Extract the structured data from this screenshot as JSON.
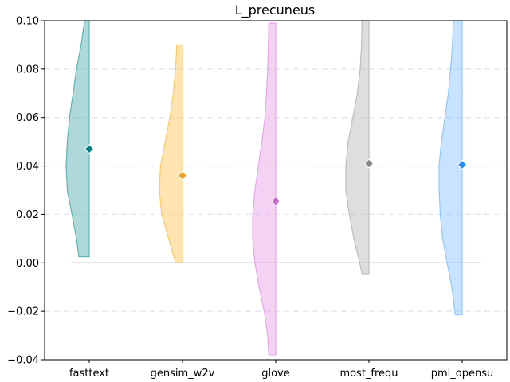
{
  "chart_data": {
    "type": "violin",
    "title": "L_precuneus",
    "xlabel": "",
    "ylabel": "",
    "ylim": [
      -0.04,
      0.1
    ],
    "yticks": [
      -0.04,
      -0.02,
      0.0,
      0.02,
      0.04,
      0.06,
      0.08,
      0.1
    ],
    "ytick_labels": [
      "−0.04",
      "−0.02",
      "0.00",
      "0.02",
      "0.04",
      "0.06",
      "0.08",
      "0.10"
    ],
    "categories": [
      "fasttext",
      "gensim_w2v",
      "glove",
      "most_frequ",
      "pmi_opensu"
    ],
    "grid": "horizontal dashed",
    "reference_line": 0.0,
    "series": [
      {
        "category": "fasttext",
        "color": "#5fb3b3",
        "marker_color": "#008080",
        "mean": 0.047,
        "min": 0.0025,
        "max": 0.1,
        "shape": [
          [
            0.0025,
            0.45
          ],
          [
            0.01,
            0.55
          ],
          [
            0.02,
            0.75
          ],
          [
            0.03,
            0.95
          ],
          [
            0.04,
            1.0
          ],
          [
            0.05,
            0.95
          ],
          [
            0.06,
            0.85
          ],
          [
            0.07,
            0.7
          ],
          [
            0.08,
            0.55
          ],
          [
            0.09,
            0.35
          ],
          [
            0.1,
            0.2
          ]
        ]
      },
      {
        "category": "gensim_w2v",
        "color": "#ffc966",
        "marker_color": "#f0a020",
        "mean": 0.036,
        "min": 0.0,
        "max": 0.09,
        "shape": [
          [
            0.0,
            0.3
          ],
          [
            0.01,
            0.6
          ],
          [
            0.02,
            0.9
          ],
          [
            0.03,
            1.0
          ],
          [
            0.04,
            0.95
          ],
          [
            0.05,
            0.75
          ],
          [
            0.06,
            0.55
          ],
          [
            0.07,
            0.4
          ],
          [
            0.08,
            0.3
          ],
          [
            0.09,
            0.25
          ]
        ]
      },
      {
        "category": "glove",
        "color": "#e8a6e8",
        "marker_color": "#cc66cc",
        "mean": 0.0255,
        "min": -0.038,
        "max": 0.099,
        "shape": [
          [
            -0.038,
            0.3
          ],
          [
            -0.03,
            0.35
          ],
          [
            -0.02,
            0.5
          ],
          [
            -0.01,
            0.72
          ],
          [
            0.0,
            0.9
          ],
          [
            0.01,
            1.0
          ],
          [
            0.02,
            1.0
          ],
          [
            0.03,
            0.9
          ],
          [
            0.04,
            0.75
          ],
          [
            0.05,
            0.6
          ],
          [
            0.06,
            0.47
          ],
          [
            0.07,
            0.4
          ],
          [
            0.08,
            0.35
          ],
          [
            0.09,
            0.32
          ],
          [
            0.099,
            0.3
          ]
        ]
      },
      {
        "category": "most_frequ",
        "color": "#bdbdbd",
        "marker_color": "#888888",
        "mean": 0.041,
        "min": -0.0045,
        "max": 0.1,
        "shape": [
          [
            -0.0045,
            0.3
          ],
          [
            0.0,
            0.4
          ],
          [
            0.01,
            0.65
          ],
          [
            0.02,
            0.85
          ],
          [
            0.03,
            1.0
          ],
          [
            0.04,
            1.0
          ],
          [
            0.05,
            0.9
          ],
          [
            0.06,
            0.7
          ],
          [
            0.07,
            0.5
          ],
          [
            0.08,
            0.38
          ],
          [
            0.09,
            0.32
          ],
          [
            0.1,
            0.3
          ]
        ]
      },
      {
        "category": "pmi_opensu",
        "color": "#90c8ff",
        "marker_color": "#2090ff",
        "mean": 0.0405,
        "min": -0.0215,
        "max": 0.1,
        "shape": [
          [
            -0.0215,
            0.3
          ],
          [
            -0.01,
            0.45
          ],
          [
            0.0,
            0.65
          ],
          [
            0.01,
            0.85
          ],
          [
            0.02,
            0.95
          ],
          [
            0.03,
            1.0
          ],
          [
            0.04,
            1.0
          ],
          [
            0.05,
            0.9
          ],
          [
            0.06,
            0.75
          ],
          [
            0.07,
            0.6
          ],
          [
            0.08,
            0.5
          ],
          [
            0.09,
            0.42
          ],
          [
            0.1,
            0.38
          ]
        ]
      }
    ]
  }
}
